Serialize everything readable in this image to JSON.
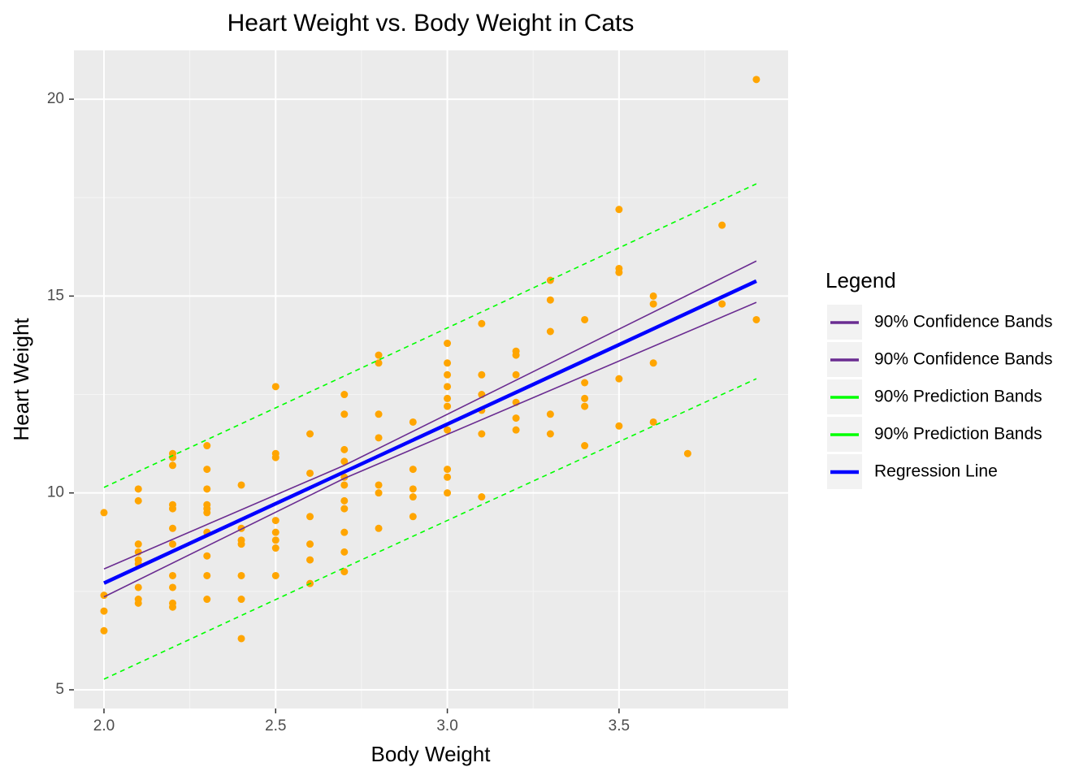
{
  "chart_data": {
    "type": "scatter",
    "title": "Heart Weight vs. Body Weight in Cats",
    "x_label": "Body Weight",
    "y_label": "Heart Weight",
    "legend_title": "Legend",
    "xlim": [
      1.9125,
      3.9925
    ],
    "ylim": [
      4.525,
      21.24
    ],
    "xticks": [
      {
        "value": 2,
        "label": "2.0"
      },
      2.5,
      {
        "value": 3,
        "label": "3.0"
      },
      3.5
    ],
    "yticks": [
      5,
      10,
      15,
      20
    ],
    "x_minor_ticks": [
      2.25,
      2.75,
      3.25,
      3.75
    ],
    "y_minor_ticks": [
      7.5,
      12.5,
      17.5
    ],
    "grid": true,
    "points": {
      "color": "#ffa500",
      "x": [
        2.0,
        2.0,
        2.0,
        2.0,
        2.1,
        2.1,
        2.1,
        2.1,
        2.1,
        2.1,
        2.1,
        2.1,
        2.1,
        2.2,
        2.2,
        2.2,
        2.2,
        2.2,
        2.2,
        2.2,
        2.2,
        2.2,
        2.2,
        2.2,
        2.3,
        2.3,
        2.3,
        2.3,
        2.3,
        2.3,
        2.3,
        2.3,
        2.3,
        2.3,
        2.4,
        2.4,
        2.4,
        2.4,
        2.4,
        2.4,
        2.4,
        2.5,
        2.5,
        2.5,
        2.5,
        2.5,
        2.5,
        2.5,
        2.5,
        2.6,
        2.6,
        2.6,
        2.6,
        2.6,
        2.6,
        2.7,
        2.7,
        2.7,
        2.7,
        2.7,
        2.7,
        2.7,
        2.7,
        2.7,
        2.7,
        2.7,
        2.8,
        2.8,
        2.8,
        2.8,
        2.8,
        2.8,
        2.8,
        2.9,
        2.9,
        2.9,
        2.9,
        2.9,
        3.0,
        3.0,
        3.0,
        3.0,
        3.0,
        3.0,
        3.0,
        3.0,
        3.0,
        3.0,
        3.1,
        3.1,
        3.1,
        3.1,
        3.1,
        3.1,
        3.2,
        3.2,
        3.2,
        3.2,
        3.2,
        3.2,
        3.3,
        3.3,
        3.3,
        3.3,
        3.3,
        3.4,
        3.4,
        3.4,
        3.4,
        3.4,
        3.5,
        3.5,
        3.5,
        3.5,
        3.5,
        3.6,
        3.6,
        3.6,
        3.6,
        3.7,
        3.8,
        3.8,
        3.9,
        3.9
      ],
      "y": [
        9.5,
        7.4,
        7.0,
        6.5,
        10.1,
        9.8,
        8.7,
        8.5,
        8.3,
        8.2,
        7.6,
        7.3,
        7.2,
        11.0,
        10.9,
        10.7,
        9.7,
        9.6,
        9.1,
        8.7,
        7.9,
        7.6,
        7.2,
        7.1,
        11.2,
        10.6,
        10.1,
        9.7,
        9.6,
        9.5,
        9.0,
        8.4,
        7.9,
        7.3,
        10.2,
        9.1,
        8.8,
        8.7,
        7.9,
        7.3,
        6.3,
        12.7,
        11.0,
        10.9,
        9.3,
        9.0,
        8.8,
        8.6,
        7.9,
        11.5,
        10.5,
        9.4,
        8.7,
        8.3,
        7.7,
        12.5,
        12.0,
        11.1,
        10.8,
        10.4,
        10.2,
        9.8,
        9.6,
        9.0,
        8.5,
        8.0,
        13.5,
        13.3,
        12.0,
        11.4,
        10.2,
        10.0,
        9.1,
        11.8,
        10.6,
        10.1,
        9.9,
        9.4,
        13.8,
        13.3,
        13.0,
        12.7,
        12.4,
        12.2,
        11.6,
        10.6,
        10.4,
        10.0,
        14.3,
        13.0,
        12.5,
        12.1,
        11.5,
        9.9,
        13.6,
        13.5,
        13.0,
        12.3,
        11.9,
        11.6,
        15.4,
        14.9,
        14.1,
        12.0,
        11.5,
        14.4,
        12.8,
        12.4,
        12.2,
        11.2,
        17.2,
        15.7,
        15.6,
        12.9,
        11.7,
        15.0,
        14.8,
        13.3,
        11.8,
        11.0,
        16.8,
        14.8,
        20.5,
        14.4
      ]
    },
    "lines": [
      {
        "name": "90% Confidence Bands",
        "color": "#6a2c91",
        "linetype": "solid",
        "x": [
          2.0,
          2.7,
          3.9
        ],
        "y": [
          8.07,
          10.7,
          15.89
        ]
      },
      {
        "name": "90% Confidence Bands",
        "color": "#6a2c91",
        "linetype": "solid",
        "x": [
          2.0,
          2.7,
          3.9
        ],
        "y": [
          7.36,
          10.37,
          14.84
        ]
      },
      {
        "name": "90% Prediction Bands",
        "color": "#00ff00",
        "linetype": "dashed",
        "x": [
          2.0,
          2.7,
          3.9
        ],
        "y": [
          10.14,
          12.97,
          17.85
        ]
      },
      {
        "name": "90% Prediction Bands",
        "color": "#00ff00",
        "linetype": "dashed",
        "x": [
          2.0,
          2.7,
          3.9
        ],
        "y": [
          5.27,
          8.1,
          12.9
        ]
      },
      {
        "name": "Regression Line",
        "color": "#0000ff",
        "linetype": "thick",
        "x": [
          2.0,
          2.7,
          3.9
        ],
        "y": [
          7.71,
          10.535,
          15.38
        ]
      }
    ]
  }
}
